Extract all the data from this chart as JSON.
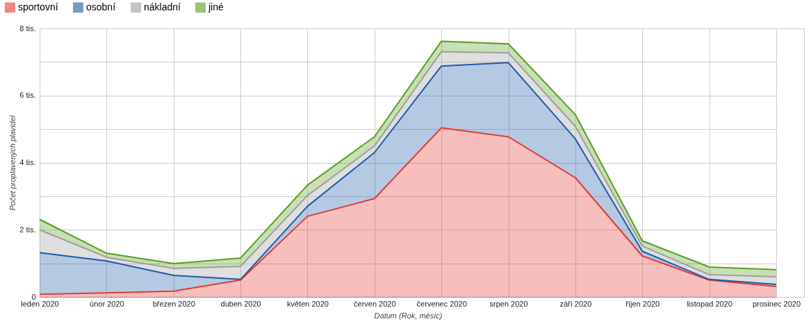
{
  "chart_data": {
    "type": "area",
    "stacked": true,
    "xlabel": "Datum (Rok, měsíc)",
    "ylabel": "Počet proplavených plavidel",
    "categories": [
      "leden 2020",
      "únor 2020",
      "březen 2020",
      "duben 2020",
      "květen 2020",
      "červen 2020",
      "červenec 2020",
      "srpen 2020",
      "září 2020",
      "říjen 2020",
      "listopad 2020",
      "prosinec 2020"
    ],
    "series": [
      {
        "name": "sportovní",
        "color": "#e53935",
        "values": [
          0.08,
          0.12,
          0.17,
          0.5,
          2.4,
          2.93,
          5.04,
          4.77,
          3.55,
          1.22,
          0.5,
          0.31
        ]
      },
      {
        "name": "osobní",
        "color": "#1e5aa8",
        "values": [
          1.24,
          0.95,
          0.47,
          0.02,
          0.3,
          1.37,
          1.84,
          2.21,
          1.16,
          0.14,
          0.02,
          0.06
        ]
      },
      {
        "name": "nákladní",
        "color": "#9e9e9e",
        "values": [
          0.68,
          0.11,
          0.21,
          0.39,
          0.32,
          0.2,
          0.43,
          0.29,
          0.37,
          0.15,
          0.14,
          0.23
        ]
      },
      {
        "name": "jiné",
        "color": "#5a9e1f",
        "values": [
          0.31,
          0.12,
          0.14,
          0.25,
          0.31,
          0.27,
          0.31,
          0.27,
          0.35,
          0.16,
          0.23,
          0.21
        ]
      }
    ],
    "ylim": [
      0,
      8
    ],
    "yticks": [
      0,
      {
        "value": 1,
        "label": null
      },
      {
        "value": 2,
        "label": "2 tis."
      },
      {
        "value": 3,
        "label": null
      },
      {
        "value": 4,
        "label": "4 tis."
      },
      {
        "value": 5,
        "label": null
      },
      {
        "value": 6,
        "label": "6 tis."
      },
      {
        "value": 7,
        "label": null
      },
      {
        "value": 8,
        "label": "8 tis."
      }
    ],
    "grid": true,
    "legend": "top left",
    "marker": "none"
  }
}
